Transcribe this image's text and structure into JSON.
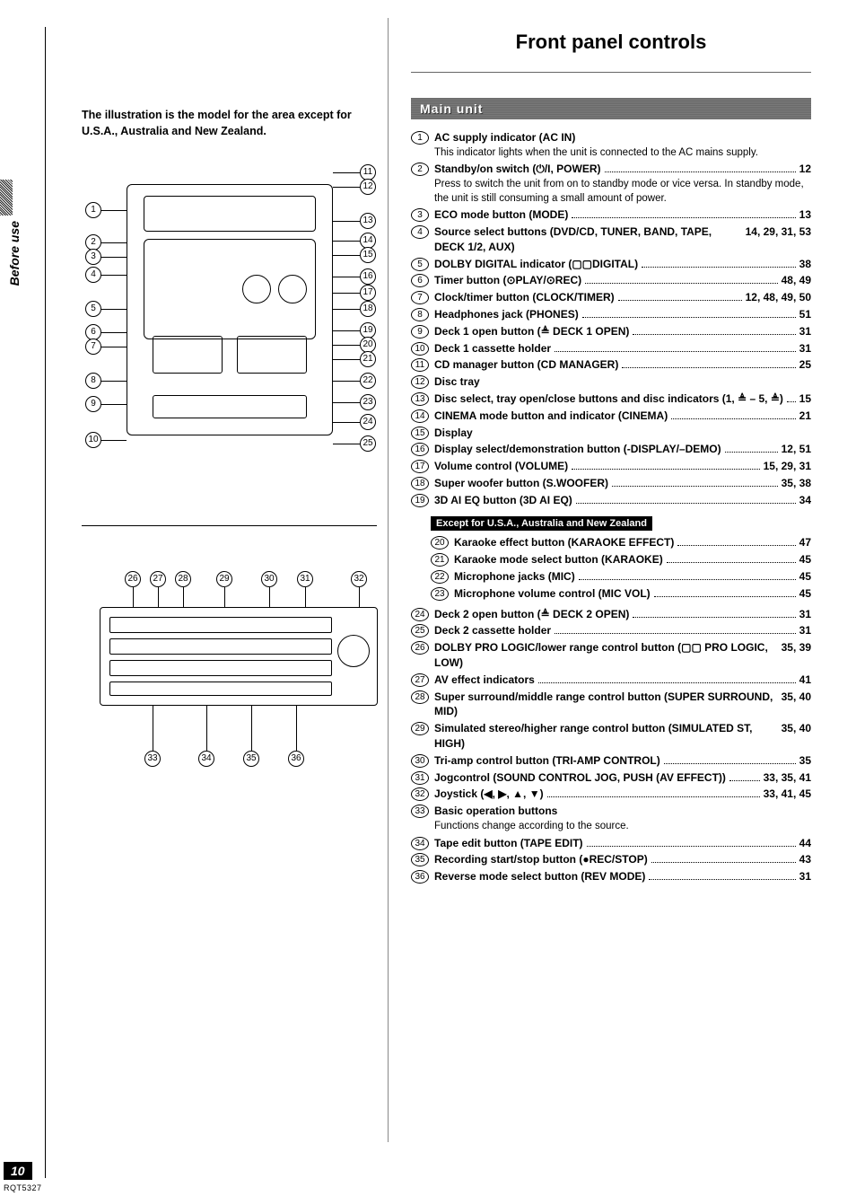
{
  "sideTab": "Before use",
  "pageNumber": "10",
  "docNumber": "RQT5327",
  "leftNote": "The illustration is the model for the area except for U.S.A., Australia and New Zealand.",
  "title": "Front panel controls",
  "sectionHeader": "Main unit",
  "subHeader": "Except for U.S.A., Australia and New Zealand",
  "diagram1Callouts": [
    "1",
    "2",
    "3",
    "4",
    "5",
    "6",
    "7",
    "8",
    "9",
    "10",
    "11",
    "12",
    "13",
    "14",
    "15",
    "16",
    "17",
    "18",
    "19",
    "20",
    "21",
    "22",
    "23",
    "24",
    "25"
  ],
  "diagram2Top": [
    "26",
    "27",
    "28",
    "29",
    "30",
    "31",
    "32"
  ],
  "diagram2Bot": [
    "33",
    "34",
    "35",
    "36"
  ],
  "items": [
    {
      "n": "1",
      "title": "AC supply indicator (AC IN)",
      "page": "",
      "desc": "This indicator lights when the unit is connected to the AC mains supply."
    },
    {
      "n": "2",
      "title": "Standby/on switch (⏻/I, POWER)",
      "page": "12",
      "desc": "Press to switch the unit from on to standby mode or vice versa. In standby mode, the unit is still consuming a small amount of power."
    },
    {
      "n": "3",
      "title": "ECO mode button (MODE)",
      "page": "13"
    },
    {
      "n": "4",
      "title": "Source select buttons (DVD/CD, TUNER, BAND, TAPE, DECK 1/2, AUX)",
      "page": "14, 29, 31, 53"
    },
    {
      "n": "5",
      "title": "DOLBY DIGITAL indicator (▢▢DIGITAL)",
      "page": "38"
    },
    {
      "n": "6",
      "title": "Timer button (⊙PLAY/⊙REC)",
      "page": "48, 49"
    },
    {
      "n": "7",
      "title": "Clock/timer button (CLOCK/TIMER)",
      "page": "12, 48, 49, 50"
    },
    {
      "n": "8",
      "title": "Headphones jack (PHONES)",
      "page": "51"
    },
    {
      "n": "9",
      "title": "Deck 1 open button (≜ DECK 1 OPEN)",
      "page": "31"
    },
    {
      "n": "10",
      "title": "Deck 1 cassette holder",
      "page": "31"
    },
    {
      "n": "11",
      "title": "CD manager button (CD MANAGER)",
      "page": "25"
    },
    {
      "n": "12",
      "title": "Disc tray",
      "page": ""
    },
    {
      "n": "13",
      "title": "Disc select, tray open/close buttons and disc indicators (1, ≜ – 5, ≜)",
      "page": "15"
    },
    {
      "n": "14",
      "title": "CINEMA mode button and indicator (CINEMA)",
      "page": "21"
    },
    {
      "n": "15",
      "title": "Display",
      "page": ""
    },
    {
      "n": "16",
      "title": "Display select/demonstration button (-DISPLAY/–DEMO)",
      "page": "12, 51"
    },
    {
      "n": "17",
      "title": "Volume control (VOLUME)",
      "page": "15, 29, 31"
    },
    {
      "n": "18",
      "title": "Super woofer button (S.WOOFER)",
      "page": "35, 38"
    },
    {
      "n": "19",
      "title": "3D AI EQ button (3D AI EQ)",
      "page": "34"
    }
  ],
  "exceptItems": [
    {
      "n": "20",
      "title": "Karaoke effect button (KARAOKE EFFECT)",
      "page": "47"
    },
    {
      "n": "21",
      "title": "Karaoke mode select button (KARAOKE)",
      "page": "45"
    },
    {
      "n": "22",
      "title": "Microphone jacks (MIC)",
      "page": "45"
    },
    {
      "n": "23",
      "title": "Microphone volume control (MIC VOL)",
      "page": "45"
    }
  ],
  "items2": [
    {
      "n": "24",
      "title": "Deck 2 open button (≜ DECK 2 OPEN)",
      "page": "31"
    },
    {
      "n": "25",
      "title": "Deck 2 cassette holder",
      "page": "31"
    },
    {
      "n": "26",
      "title": "DOLBY PRO LOGIC/lower range control button (▢▢ PRO LOGIC, LOW)",
      "page": "35, 39"
    },
    {
      "n": "27",
      "title": "AV effect indicators",
      "page": "41"
    },
    {
      "n": "28",
      "title": "Super surround/middle range control button (SUPER SURROUND, MID)",
      "page": "35, 40"
    },
    {
      "n": "29",
      "title": "Simulated stereo/higher range control button (SIMULATED ST, HIGH)",
      "page": "35, 40"
    },
    {
      "n": "30",
      "title": "Tri-amp control button (TRI-AMP CONTROL)",
      "page": "35"
    },
    {
      "n": "31",
      "title": "Jogcontrol (SOUND CONTROL JOG, PUSH (AV EFFECT))",
      "page": "33, 35, 41"
    },
    {
      "n": "32",
      "title": "Joystick (◀, ▶, ▲, ▼)",
      "page": "33, 41, 45"
    },
    {
      "n": "33",
      "title": "Basic operation buttons",
      "page": "",
      "desc": "Functions change according to the source."
    },
    {
      "n": "34",
      "title": "Tape edit button (TAPE EDIT)",
      "page": "44"
    },
    {
      "n": "35",
      "title": "Recording start/stop button (●REC/STOP)",
      "page": "43"
    },
    {
      "n": "36",
      "title": "Reverse mode select button (REV MODE)",
      "page": "31"
    }
  ]
}
